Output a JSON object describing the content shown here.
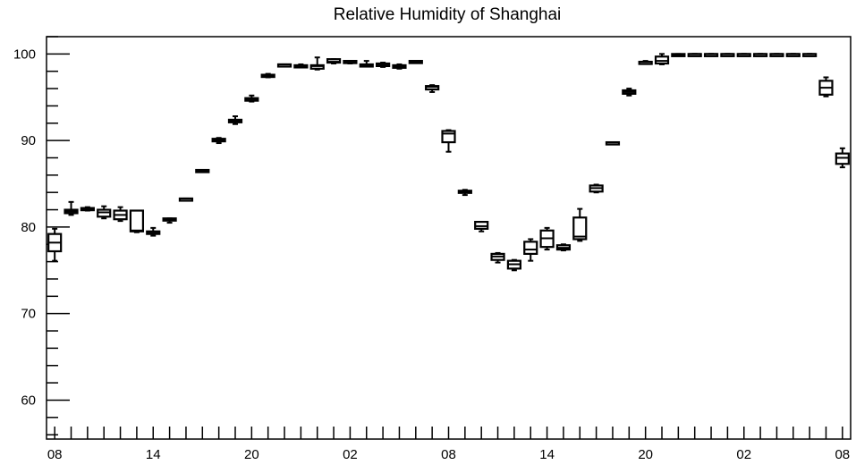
{
  "chart_data": {
    "type": "box",
    "title": "Relative Humidity of Shanghai",
    "xlabel": "",
    "ylabel": "",
    "ylim": [
      55.5,
      102
    ],
    "xlim": [
      -0.5,
      48.5
    ],
    "y_ticks": [
      60,
      70,
      80,
      90,
      100
    ],
    "x_ticks": [
      {
        "index": 0,
        "label": "08"
      },
      {
        "index": 6,
        "label": "14"
      },
      {
        "index": 12,
        "label": "20"
      },
      {
        "index": 18,
        "label": "02"
      },
      {
        "index": 24,
        "label": "08"
      },
      {
        "index": 30,
        "label": "14"
      },
      {
        "index": 36,
        "label": "20"
      },
      {
        "index": 42,
        "label": "02"
      },
      {
        "index": 48,
        "label": "08"
      }
    ],
    "grid": false,
    "boxes": [
      {
        "i": 0,
        "min": 76.1,
        "q1": 77.2,
        "median": 78.2,
        "q3": 79.2,
        "max": 79.8
      },
      {
        "i": 1,
        "min": 81.4,
        "q1": 81.6,
        "median": 81.8,
        "q3": 82.0,
        "max": 82.9
      },
      {
        "i": 2,
        "min": 81.9,
        "q1": 82.0,
        "median": 82.1,
        "q3": 82.2,
        "max": 82.3
      },
      {
        "i": 3,
        "min": 81.0,
        "q1": 81.2,
        "median": 81.7,
        "q3": 82.0,
        "max": 82.4
      },
      {
        "i": 4,
        "min": 80.7,
        "q1": 80.9,
        "median": 81.4,
        "q3": 81.9,
        "max": 82.3
      },
      {
        "i": 5,
        "min": 79.4,
        "q1": 79.5,
        "median": 79.6,
        "q3": 81.9,
        "max": 81.9
      },
      {
        "i": 6,
        "min": 79.0,
        "q1": 79.2,
        "median": 79.4,
        "q3": 79.5,
        "max": 79.9
      },
      {
        "i": 7,
        "min": 80.5,
        "q1": 80.8,
        "median": 80.9,
        "q3": 81.0,
        "max": 81.0
      },
      {
        "i": 8,
        "min": 83.2,
        "q1": 83.2,
        "median": 83.3,
        "q3": 83.3,
        "max": 83.3
      },
      {
        "i": 9,
        "min": 86.5,
        "q1": 86.5,
        "median": 86.5,
        "q3": 86.6,
        "max": 86.6
      },
      {
        "i": 10,
        "min": 89.7,
        "q1": 89.9,
        "median": 90.1,
        "q3": 90.2,
        "max": 90.3
      },
      {
        "i": 11,
        "min": 91.9,
        "q1": 92.1,
        "median": 92.2,
        "q3": 92.4,
        "max": 92.8
      },
      {
        "i": 12,
        "min": 94.5,
        "q1": 94.6,
        "median": 94.8,
        "q3": 94.9,
        "max": 95.2
      },
      {
        "i": 13,
        "min": 97.3,
        "q1": 97.4,
        "median": 97.5,
        "q3": 97.6,
        "max": 97.7
      },
      {
        "i": 14,
        "min": 98.6,
        "q1": 98.7,
        "median": 98.8,
        "q3": 98.8,
        "max": 98.8
      },
      {
        "i": 15,
        "min": 98.5,
        "q1": 98.5,
        "median": 98.6,
        "q3": 98.7,
        "max": 98.8
      },
      {
        "i": 16,
        "min": 98.2,
        "q1": 98.3,
        "median": 98.6,
        "q3": 98.7,
        "max": 99.6
      },
      {
        "i": 17,
        "min": 98.9,
        "q1": 99.0,
        "median": 99.1,
        "q3": 99.4,
        "max": 99.4
      },
      {
        "i": 18,
        "min": 98.9,
        "q1": 99.0,
        "median": 99.1,
        "q3": 99.2,
        "max": 99.2
      },
      {
        "i": 19,
        "min": 98.6,
        "q1": 98.6,
        "median": 98.7,
        "q3": 98.8,
        "max": 99.2
      },
      {
        "i": 20,
        "min": 98.5,
        "q1": 98.6,
        "median": 98.8,
        "q3": 98.9,
        "max": 99.0
      },
      {
        "i": 21,
        "min": 98.3,
        "q1": 98.4,
        "median": 98.5,
        "q3": 98.7,
        "max": 98.8
      },
      {
        "i": 22,
        "min": 99.0,
        "q1": 99.0,
        "median": 99.1,
        "q3": 99.2,
        "max": 99.2
      },
      {
        "i": 23,
        "min": 95.6,
        "q1": 95.9,
        "median": 96.2,
        "q3": 96.3,
        "max": 96.4
      },
      {
        "i": 24,
        "min": 88.7,
        "q1": 89.8,
        "median": 90.8,
        "q3": 91.1,
        "max": 91.2
      },
      {
        "i": 25,
        "min": 83.7,
        "q1": 84.0,
        "median": 84.1,
        "q3": 84.2,
        "max": 84.3
      },
      {
        "i": 26,
        "min": 79.5,
        "q1": 79.8,
        "median": 80.1,
        "q3": 80.6,
        "max": 80.6
      },
      {
        "i": 27,
        "min": 75.9,
        "q1": 76.2,
        "median": 76.6,
        "q3": 76.9,
        "max": 77.0
      },
      {
        "i": 28,
        "min": 75.0,
        "q1": 75.2,
        "median": 75.7,
        "q3": 76.1,
        "max": 76.2
      },
      {
        "i": 29,
        "min": 76.1,
        "q1": 76.9,
        "median": 77.4,
        "q3": 78.3,
        "max": 78.6
      },
      {
        "i": 30,
        "min": 77.4,
        "q1": 77.7,
        "median": 78.7,
        "q3": 79.6,
        "max": 79.9
      },
      {
        "i": 31,
        "min": 77.3,
        "q1": 77.4,
        "median": 77.6,
        "q3": 77.9,
        "max": 78.0
      },
      {
        "i": 32,
        "min": 78.4,
        "q1": 78.6,
        "median": 78.9,
        "q3": 81.1,
        "max": 82.1
      },
      {
        "i": 33,
        "min": 84.0,
        "q1": 84.1,
        "median": 84.5,
        "q3": 84.8,
        "max": 84.9
      },
      {
        "i": 34,
        "min": 89.7,
        "q1": 89.7,
        "median": 89.8,
        "q3": 89.8,
        "max": 89.8
      },
      {
        "i": 35,
        "min": 95.2,
        "q1": 95.4,
        "median": 95.6,
        "q3": 95.8,
        "max": 96.0
      },
      {
        "i": 36,
        "min": 98.9,
        "q1": 99.0,
        "median": 99.1,
        "q3": 99.1,
        "max": 99.2
      },
      {
        "i": 37,
        "min": 98.8,
        "q1": 98.9,
        "median": 99.2,
        "q3": 99.7,
        "max": 100.0
      },
      {
        "i": 38,
        "min": 99.8,
        "q1": 99.9,
        "median": 99.9,
        "q3": 100.0,
        "max": 100.0
      },
      {
        "i": 39,
        "min": 100.0,
        "q1": 100.0,
        "median": 100.0,
        "q3": 100.0,
        "max": 100.0
      },
      {
        "i": 40,
        "min": 100.0,
        "q1": 100.0,
        "median": 100.0,
        "q3": 100.0,
        "max": 100.0
      },
      {
        "i": 41,
        "min": 100.0,
        "q1": 100.0,
        "median": 100.0,
        "q3": 100.0,
        "max": 100.0
      },
      {
        "i": 42,
        "min": 100.0,
        "q1": 100.0,
        "median": 100.0,
        "q3": 100.0,
        "max": 100.0
      },
      {
        "i": 43,
        "min": 100.0,
        "q1": 100.0,
        "median": 100.0,
        "q3": 100.0,
        "max": 100.0
      },
      {
        "i": 44,
        "min": 100.0,
        "q1": 100.0,
        "median": 100.0,
        "q3": 100.0,
        "max": 100.0
      },
      {
        "i": 45,
        "min": 100.0,
        "q1": 100.0,
        "median": 100.0,
        "q3": 100.0,
        "max": 100.0
      },
      {
        "i": 46,
        "min": 100.0,
        "q1": 100.0,
        "median": 100.0,
        "q3": 100.0,
        "max": 100.0
      },
      {
        "i": 47,
        "min": 95.1,
        "q1": 95.3,
        "median": 96.1,
        "q3": 96.9,
        "max": 97.3
      },
      {
        "i": 48,
        "min": 86.9,
        "q1": 87.3,
        "median": 88.0,
        "q3": 88.5,
        "max": 89.1
      }
    ]
  }
}
